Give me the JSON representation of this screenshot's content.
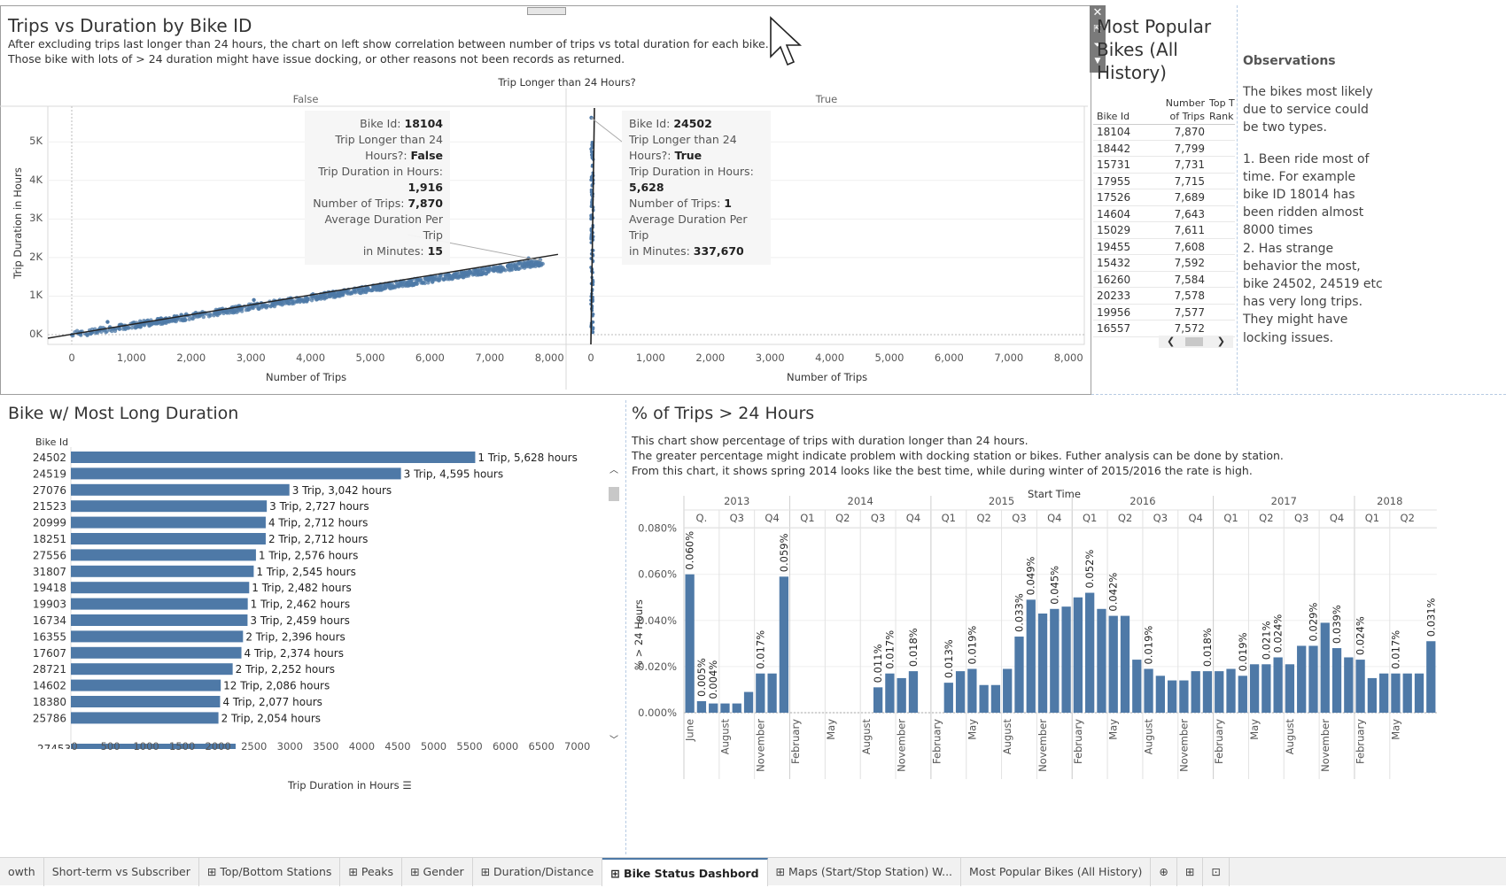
{
  "scatter": {
    "title": "Trips vs Duration by Bike ID",
    "desc_line1": "After excluding trips last longer than 24 hours, the chart on left show correlation between number of trips vs total duration for each bike.",
    "desc_line2": "Those bike with lots of > 24 duration might have issue docking, or other reasons not been records as returned.",
    "header": "Trip Longer than 24 Hours?",
    "panel_false": "False",
    "panel_true": "True",
    "ylabel": "Trip Duration in Hours",
    "xlabel_left": "Number of Trips",
    "xlabel_right": "Number of Trips",
    "yticks": [
      "0K",
      "1K",
      "2K",
      "3K",
      "4K",
      "5K"
    ],
    "xticks": [
      "0",
      "1,000",
      "2,000",
      "3,000",
      "4,000",
      "5,000",
      "6,000",
      "7,000",
      "8,000"
    ],
    "tooltip_false": {
      "l1": "Bike Id:",
      "v1": "18104",
      "l2a": "Trip Longer than 24",
      "l2b": "Hours?:",
      "v2": "False",
      "l3": "Trip Duration in Hours:",
      "v3": "1,916",
      "l4": "Number of Trips:",
      "v4": "7,870",
      "l5a": "Average Duration Per Trip",
      "l5b": "in Minutes:",
      "v5": "15"
    },
    "tooltip_true": {
      "l1": "Bike Id:",
      "v1": "24502",
      "l2a": "Trip Longer than 24",
      "l2b": "Hours?:",
      "v2": "True",
      "l3": "Trip Duration in Hours:",
      "v3": "5,628",
      "l4": "Number of Trips:",
      "v4": "1",
      "l5a": "Average Duration Per Trip",
      "l5b": "in Minutes:",
      "v5": "337,670"
    },
    "color": "#4e79a7"
  },
  "popular": {
    "title_l1": "Most Popular",
    "title_l2": "Bikes (All",
    "title_l3": "History)",
    "col_id": "Bike Id",
    "col_trips_a": "Number",
    "col_trips_b": "of Trips",
    "col_rank_a": "Top T",
    "col_rank_b": "Rank",
    "rows": [
      {
        "id": "18104",
        "trips": "7,870"
      },
      {
        "id": "18442",
        "trips": "7,799"
      },
      {
        "id": "15731",
        "trips": "7,731"
      },
      {
        "id": "17955",
        "trips": "7,715"
      },
      {
        "id": "17526",
        "trips": "7,689"
      },
      {
        "id": "14604",
        "trips": "7,643"
      },
      {
        "id": "15029",
        "trips": "7,611"
      },
      {
        "id": "19455",
        "trips": "7,608"
      },
      {
        "id": "15432",
        "trips": "7,592"
      },
      {
        "id": "16260",
        "trips": "7,584"
      },
      {
        "id": "20233",
        "trips": "7,578"
      },
      {
        "id": "19956",
        "trips": "7,577"
      },
      {
        "id": "16557",
        "trips": "7,572"
      }
    ]
  },
  "observations": {
    "title": "Observations",
    "p1": "The bikes most likely due to service could be two types.",
    "p2": "1. Been ride most of time. For example bike ID 18014 has been ridden almost 8000 times",
    "p3": "2. Has strange behavior the most, bike 24502, 24519 etc has very long trips. They might have locking issues."
  },
  "longduration": {
    "title": "Bike w/ Most Long Duration",
    "col": "Bike Id",
    "xlabel": "Trip Duration in Hours",
    "xticks": [
      "0",
      "500",
      "1000",
      "1500",
      "2000",
      "2500",
      "3000",
      "3500",
      "4000",
      "4500",
      "5000",
      "5500",
      "6000",
      "6500",
      "7000"
    ],
    "cutoff_id": "27453"
  },
  "pct": {
    "title": "% of Trips > 24 Hours",
    "desc1": "This chart show percentage of trips with duration longer than 24 hours.",
    "desc2": "The greater percentage might indicate problem with docking station or bikes. Futher analysis can be done by station.",
    "desc3": "From this chart, it shows spring 2014 looks like the best time, while during winter of 2015/2016 the rate is high.",
    "header": "Start Time",
    "ylabel": "% > 24 Hours",
    "yticks": [
      "0.000%",
      "0.020%",
      "0.040%",
      "0.060%",
      "0.080%"
    ]
  },
  "tabs": [
    "owth",
    "Short-term vs Subscriber",
    "Top/Bottom Stations",
    "Peaks",
    "Gender",
    "Duration/Distance",
    "Bike Status Dashbord",
    "Maps (Start/Stop Station) W...",
    "Most Popular Bikes (All History)"
  ],
  "chart_data": [
    {
      "type": "scatter",
      "title": "Trips vs Duration by Bike ID",
      "xlabel": "Number of Trips",
      "ylabel": "Trip Duration in Hours",
      "xlim": [
        0,
        8500
      ],
      "ylim": [
        0,
        6000
      ],
      "series": [
        {
          "name": "False",
          "trend": [
            [
              0,
              0
            ],
            [
              8500,
              1990
            ]
          ],
          "highlight": {
            "x": 7870,
            "y": 1916
          }
        },
        {
          "name": "True",
          "highlight": {
            "x": 1,
            "y": 5628
          }
        }
      ]
    },
    {
      "type": "bar",
      "title": "Bike w/ Most Long Duration",
      "xlabel": "Trip Duration in Hours",
      "xlim": [
        0,
        7000
      ],
      "categories": [
        "24502",
        "24519",
        "27076",
        "21523",
        "20999",
        "18251",
        "27556",
        "31807",
        "19418",
        "19903",
        "16734",
        "16355",
        "17607",
        "28721",
        "14602",
        "18380",
        "25786"
      ],
      "values": [
        5628,
        4595,
        3042,
        2727,
        2712,
        2712,
        2576,
        2545,
        2482,
        2462,
        2459,
        2396,
        2374,
        2252,
        2086,
        2077,
        2054
      ],
      "labels": [
        "1 Trip, 5,628 hours",
        "3 Trip, 4,595 hours",
        "3 Trip, 3,042 hours",
        "3 Trip, 2,727 hours",
        "4 Trip, 2,712 hours",
        "2 Trip, 2,712 hours",
        "1 Trip, 2,576 hours",
        "1 Trip, 2,545 hours",
        "1 Trip, 2,482 hours",
        "1 Trip, 2,462 hours",
        "3 Trip, 2,459 hours",
        "2 Trip, 2,396 hours",
        "4 Trip, 2,374 hours",
        "2 Trip, 2,252 hours",
        "12 Trip, 2,086 hours",
        "4 Trip, 2,077 hours",
        "2 Trip, 2,054 hours"
      ]
    },
    {
      "type": "bar",
      "title": "% of Trips > 24 Hours",
      "ylabel": "% > 24 Hours",
      "ylim": [
        0,
        0.08
      ],
      "years": [
        {
          "label": "2013",
          "quarters": [
            "Q.",
            "Q3",
            "Q4"
          ]
        },
        {
          "label": "2014",
          "quarters": [
            "Q1",
            "Q2",
            "Q3",
            "Q4"
          ]
        },
        {
          "label": "2015",
          "quarters": [
            "Q1",
            "Q2",
            "Q3",
            "Q4"
          ]
        },
        {
          "label": "2016",
          "quarters": [
            "Q1",
            "Q2",
            "Q3",
            "Q4"
          ]
        },
        {
          "label": "2017",
          "quarters": [
            "Q1",
            "Q2",
            "Q3",
            "Q4"
          ]
        },
        {
          "label": "2018",
          "quarters": [
            "Q1",
            "Q2"
          ]
        }
      ],
      "months": [
        "June",
        "August",
        "November",
        "February",
        "May",
        "August",
        "November",
        "February",
        "May",
        "August",
        "November",
        "February",
        "May",
        "August",
        "November",
        "February",
        "May",
        "August",
        "November",
        "February",
        "May"
      ],
      "values": [
        0.06,
        0.005,
        0.004,
        0.004,
        0.004,
        0.009,
        0.017,
        0.017,
        0.059,
        0,
        0,
        0,
        0,
        0,
        0,
        0,
        0.011,
        0.017,
        0.015,
        0.018,
        0,
        0,
        0.013,
        0.018,
        0.019,
        0.012,
        0.012,
        0.019,
        0.033,
        0.049,
        0.043,
        0.045,
        0.046,
        0.05,
        0.052,
        0.045,
        0.042,
        0.042,
        0.023,
        0.019,
        0.016,
        0.014,
        0.014,
        0.018,
        0.018,
        0.018,
        0.019,
        0.016,
        0.021,
        0.021,
        0.024,
        0.021,
        0.029,
        0.029,
        0.039,
        0.028,
        0.024,
        0.023,
        0.015,
        0.017,
        0.017,
        0.017,
        0.017,
        0.031
      ],
      "labels": {
        "0": "0.060%",
        "1": "0.005%",
        "2": "0.004%",
        "6": "0.017%",
        "8": "0.059%",
        "16": "0.011%",
        "17": "0.017%",
        "19": "0.018%",
        "22": "0.013%",
        "24": "0.019%",
        "28": "0.033%",
        "29": "0.049%",
        "31": "0.045%",
        "34": "0.052%",
        "36": "0.042%",
        "39": "0.019%",
        "44": "0.018%",
        "47": "0.019%",
        "49": "0.021%",
        "50": "0.024%",
        "53": "0.029%",
        "55": "0.039%",
        "57": "0.024%",
        "60": "0.017%",
        "63": "0.031%"
      }
    }
  ]
}
